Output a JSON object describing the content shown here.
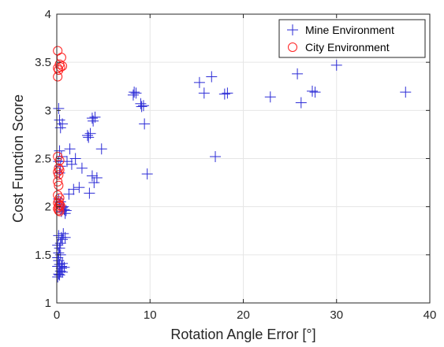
{
  "chart_data": {
    "type": "scatter",
    "xlabel": "Rotation Angle Error [°]",
    "ylabel": "Cost Function Score",
    "xlim": [
      0,
      40
    ],
    "ylim": [
      1,
      4
    ],
    "xticks": [
      0,
      10,
      20,
      30,
      40
    ],
    "yticks": [
      1,
      1.5,
      2,
      2.5,
      3,
      3.5,
      4
    ],
    "xtick_labels": [
      "0",
      "10",
      "20",
      "30",
      "40"
    ],
    "ytick_labels": [
      "1",
      "1.5",
      "2",
      "2.5",
      "3",
      "3.5",
      "4"
    ],
    "grid": true,
    "legend_position": "top-right",
    "series": [
      {
        "name": "Mine Environment",
        "marker": "plus",
        "color": "#2b2bd6",
        "points": [
          [
            0.1,
            1.27
          ],
          [
            0.2,
            1.3
          ],
          [
            0.4,
            1.33
          ],
          [
            0.5,
            1.36
          ],
          [
            0.1,
            1.38
          ],
          [
            0.3,
            1.4
          ],
          [
            0.6,
            1.41
          ],
          [
            0.2,
            1.44
          ],
          [
            0.1,
            1.47
          ],
          [
            0.4,
            1.5
          ],
          [
            0.2,
            1.52
          ],
          [
            0.5,
            1.38
          ],
          [
            0.8,
            1.37
          ],
          [
            0.3,
            1.29
          ],
          [
            0.6,
            1.32
          ],
          [
            0.4,
            1.62
          ],
          [
            0.6,
            1.66
          ],
          [
            0.5,
            1.68
          ],
          [
            0.9,
            1.68
          ],
          [
            0.2,
            1.7
          ],
          [
            0.7,
            1.72
          ],
          [
            0.3,
            1.57
          ],
          [
            0.1,
            1.6
          ],
          [
            0.5,
            1.95
          ],
          [
            0.8,
            1.97
          ],
          [
            1.0,
            1.96
          ],
          [
            0.6,
            1.99
          ],
          [
            0.3,
            2.02
          ],
          [
            0.4,
            2.05
          ],
          [
            0.2,
            2.08
          ],
          [
            0.9,
            1.93
          ],
          [
            0.7,
            2.0
          ],
          [
            1.3,
            2.13
          ],
          [
            1.8,
            2.18
          ],
          [
            2.4,
            2.2
          ],
          [
            3.5,
            2.14
          ],
          [
            4.0,
            2.25
          ],
          [
            4.3,
            2.3
          ],
          [
            3.8,
            2.32
          ],
          [
            2.7,
            2.4
          ],
          [
            1.6,
            2.44
          ],
          [
            2.0,
            2.5
          ],
          [
            1.1,
            2.47
          ],
          [
            1.4,
            2.6
          ],
          [
            4.8,
            2.6
          ],
          [
            0.4,
            2.42
          ],
          [
            0.3,
            2.35
          ],
          [
            0.2,
            2.47
          ],
          [
            0.5,
            2.52
          ],
          [
            0.3,
            2.58
          ],
          [
            3.4,
            2.72
          ],
          [
            3.6,
            2.76
          ],
          [
            3.3,
            2.74
          ],
          [
            3.8,
            2.92
          ],
          [
            4.1,
            2.93
          ],
          [
            3.9,
            2.89
          ],
          [
            0.4,
            2.82
          ],
          [
            0.6,
            2.86
          ],
          [
            0.3,
            2.9
          ],
          [
            0.2,
            3.02
          ],
          [
            8.2,
            3.16
          ],
          [
            8.5,
            3.18
          ],
          [
            8.3,
            3.19
          ],
          [
            9.0,
            3.07
          ],
          [
            9.3,
            3.05
          ],
          [
            9.1,
            3.04
          ],
          [
            9.4,
            2.86
          ],
          [
            9.7,
            2.34
          ],
          [
            15.3,
            3.29
          ],
          [
            15.8,
            3.18
          ],
          [
            16.6,
            3.35
          ],
          [
            17.0,
            2.52
          ],
          [
            18.0,
            3.17
          ],
          [
            18.3,
            3.18
          ],
          [
            22.9,
            3.14
          ],
          [
            25.8,
            3.38
          ],
          [
            26.2,
            3.08
          ],
          [
            27.4,
            3.2
          ],
          [
            27.7,
            3.19
          ],
          [
            30.0,
            3.47
          ],
          [
            37.4,
            3.19
          ]
        ]
      },
      {
        "name": "City Environment",
        "marker": "circle",
        "color": "#ff2020",
        "points": [
          [
            0.1,
            3.62
          ],
          [
            0.5,
            3.55
          ],
          [
            0.3,
            3.48
          ],
          [
            0.1,
            3.44
          ],
          [
            0.4,
            3.45
          ],
          [
            0.2,
            3.42
          ],
          [
            0.6,
            3.46
          ],
          [
            0.1,
            3.35
          ],
          [
            0.1,
            2.52
          ],
          [
            0.3,
            2.48
          ],
          [
            0.2,
            2.4
          ],
          [
            0.1,
            2.36
          ],
          [
            0.3,
            2.38
          ],
          [
            0.2,
            2.33
          ],
          [
            0.1,
            2.26
          ],
          [
            0.2,
            2.22
          ],
          [
            0.1,
            2.12
          ],
          [
            0.3,
            2.09
          ],
          [
            0.2,
            2.06
          ],
          [
            0.1,
            2.04
          ],
          [
            0.3,
            2.02
          ],
          [
            0.2,
            2.0
          ],
          [
            0.1,
            1.98
          ],
          [
            0.2,
            1.96
          ],
          [
            0.4,
            2.01
          ],
          [
            0.3,
            1.95
          ]
        ]
      }
    ]
  }
}
